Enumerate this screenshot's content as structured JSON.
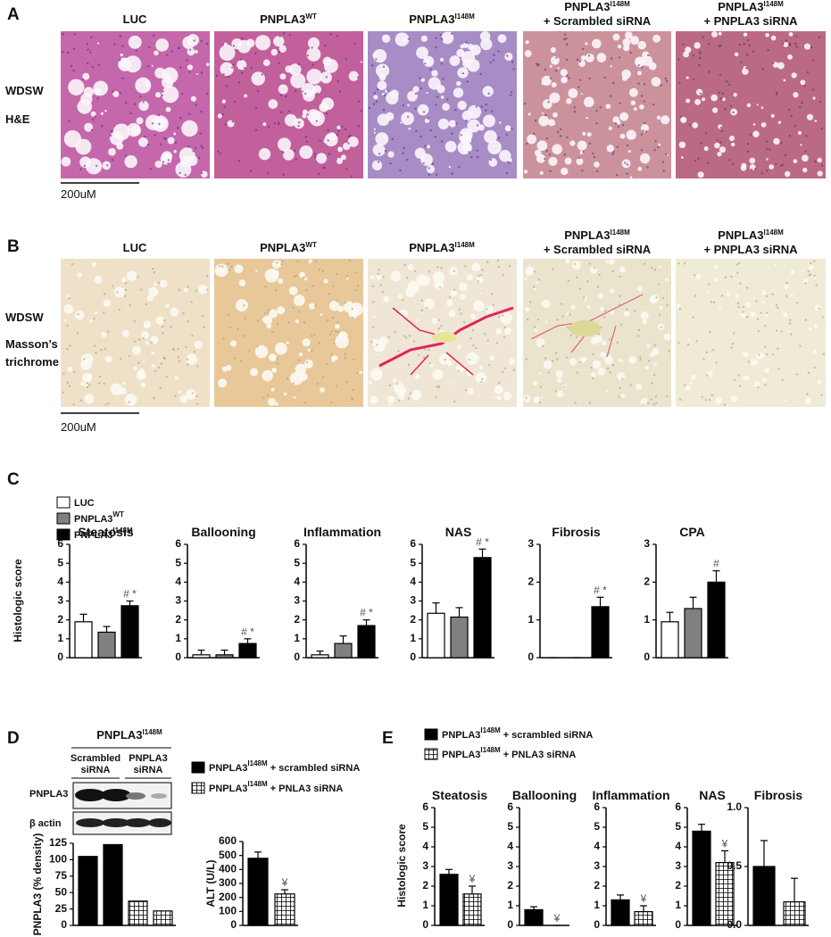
{
  "panel_a": {
    "label": "A",
    "columns": [
      {
        "text": "LUC"
      },
      {
        "text": "PNPLA3",
        "sup": "WT"
      },
      {
        "text": "PNPLA3",
        "sup": "I148M"
      },
      {
        "text": "PNPLA3",
        "sup": "I148M",
        "line2": "+ Scrambled siRNA"
      },
      {
        "text": "PNPLA3",
        "sup": "I148M",
        "line2": "+ PNPLA3 siRNA"
      }
    ],
    "row_labels": [
      "WDSW",
      "H&E"
    ],
    "scale_bar": "200uM"
  },
  "panel_b": {
    "label": "B",
    "columns": [
      {
        "text": "LUC"
      },
      {
        "text": "PNPLA3",
        "sup": "WT"
      },
      {
        "text": "PNPLA3",
        "sup": "I148M"
      },
      {
        "text": "PNPLA3",
        "sup": "I148M",
        "line2": "+ Scrambled siRNA"
      },
      {
        "text": "PNPLA3",
        "sup": "I148M",
        "line2": "+ PNPLA3 siRNA"
      }
    ],
    "row_labels": [
      "WDSW",
      "Masson’s",
      "trichrome"
    ],
    "scale_bar": "200uM"
  },
  "panel_c": {
    "label": "C",
    "ylabel": "Histologic score",
    "legend": [
      {
        "name": "LUC",
        "color": "#ffffff"
      },
      {
        "name": "PNPLA3",
        "sup": "WT",
        "color": "#808080"
      },
      {
        "name": "PNPLA3",
        "sup": "I148M",
        "color": "#000000"
      }
    ]
  },
  "panel_d": {
    "label": "D",
    "blot_title": {
      "text": "PNPLA3",
      "sup": "I148M"
    },
    "groups": [
      [
        "Scrambled",
        "siRNA"
      ],
      [
        "PNPLA3",
        "siRNA"
      ]
    ],
    "blot_rows": [
      "PNPLA3",
      "β actin"
    ],
    "legend": [
      {
        "name": "PNPLA3",
        "sup": "I148M",
        "after": " + scrambled siRNA",
        "color": "#000000"
      },
      {
        "name": "PNPLA3",
        "sup": "I148M",
        "after": " + PNLA3 siRNA",
        "color": "hatched"
      }
    ]
  },
  "panel_e": {
    "label": "E",
    "ylabel": "Histologic score",
    "legend": [
      {
        "name": "PNPLA3",
        "sup": "I148M",
        "after": " + scrambled siRNA",
        "color": "#000000"
      },
      {
        "name": "PNPLA3",
        "sup": "I148M",
        "after": " + PNLA3 siRNA",
        "color": "hatched"
      }
    ]
  },
  "chart_data": [
    {
      "type": "bar",
      "title": "Steatosis",
      "values": [
        1.9,
        1.35,
        2.75
      ],
      "errors": [
        0.4,
        0.3,
        0.25
      ],
      "colors": [
        "#ffffff",
        "#808080",
        "#000000"
      ],
      "ylim": [
        0,
        6
      ],
      "yticks": [
        0,
        1,
        2,
        3,
        4,
        5,
        6
      ],
      "annotation": "# *"
    },
    {
      "type": "bar",
      "title": "Ballooning",
      "values": [
        0.15,
        0.15,
        0.75
      ],
      "errors": [
        0.25,
        0.25,
        0.25
      ],
      "colors": [
        "#ffffff",
        "#808080",
        "#000000"
      ],
      "ylim": [
        0,
        6
      ],
      "yticks": [
        0,
        1,
        2,
        3,
        4,
        5,
        6
      ],
      "annotation": "# *"
    },
    {
      "type": "bar",
      "title": "Inflammation",
      "values": [
        0.15,
        0.75,
        1.7
      ],
      "errors": [
        0.2,
        0.4,
        0.3
      ],
      "colors": [
        "#ffffff",
        "#808080",
        "#000000"
      ],
      "ylim": [
        0,
        6
      ],
      "yticks": [
        0,
        1,
        2,
        3,
        4,
        5,
        6
      ],
      "annotation": "# *"
    },
    {
      "type": "bar",
      "title": "NAS",
      "values": [
        2.35,
        2.15,
        5.3
      ],
      "errors": [
        0.55,
        0.5,
        0.45
      ],
      "colors": [
        "#ffffff",
        "#808080",
        "#000000"
      ],
      "ylim": [
        0,
        6
      ],
      "yticks": [
        0,
        1,
        2,
        3,
        4,
        5,
        6
      ],
      "annotation": "# *"
    },
    {
      "type": "bar",
      "title": "Fibrosis",
      "values": [
        0,
        0,
        1.35
      ],
      "errors": [
        0,
        0,
        0.25
      ],
      "colors": [
        "#ffffff",
        "#808080",
        "#000000"
      ],
      "ylim": [
        0,
        3
      ],
      "yticks": [
        0,
        1,
        2,
        3
      ],
      "annotation": "# *"
    },
    {
      "type": "bar",
      "title": "CPA",
      "values": [
        0.95,
        1.3,
        2.0
      ],
      "errors": [
        0.25,
        0.3,
        0.3
      ],
      "colors": [
        "#ffffff",
        "#808080",
        "#000000"
      ],
      "ylim": [
        0,
        3
      ],
      "yticks": [
        0,
        1,
        2,
        3
      ],
      "annotation": "#"
    },
    {
      "type": "bar",
      "ylabel": "PNPLA3 (% density)",
      "values": [
        105,
        123,
        37,
        22
      ],
      "colors": [
        "#000000",
        "#000000",
        "hatched",
        "hatched"
      ],
      "ylim": [
        0,
        125
      ],
      "yticks": [
        0,
        25,
        50,
        75,
        100,
        125
      ]
    },
    {
      "type": "bar",
      "ylabel": "ALT (U/L)",
      "values": [
        480,
        225
      ],
      "errors": [
        45,
        30
      ],
      "colors": [
        "#000000",
        "hatched"
      ],
      "ylim": [
        0,
        600
      ],
      "yticks": [
        0,
        100,
        200,
        300,
        400,
        500,
        600
      ],
      "annotation": "¥"
    },
    {
      "type": "bar",
      "title": "Steatosis",
      "values": [
        2.6,
        1.6
      ],
      "errors": [
        0.25,
        0.4
      ],
      "colors": [
        "#000000",
        "hatched"
      ],
      "ylim": [
        0,
        6
      ],
      "yticks": [
        0,
        1,
        2,
        3,
        4,
        5,
        6
      ],
      "annotation": "¥"
    },
    {
      "type": "bar",
      "title": "Ballooning",
      "values": [
        0.8,
        0
      ],
      "errors": [
        0.15,
        0
      ],
      "colors": [
        "#000000",
        "hatched"
      ],
      "ylim": [
        0,
        6
      ],
      "yticks": [
        0,
        1,
        2,
        3,
        4,
        5,
        6
      ],
      "annotation": "¥"
    },
    {
      "type": "bar",
      "title": "Inflammation",
      "values": [
        1.3,
        0.7
      ],
      "errors": [
        0.25,
        0.3
      ],
      "colors": [
        "#000000",
        "hatched"
      ],
      "ylim": [
        0,
        6
      ],
      "yticks": [
        0,
        1,
        2,
        3,
        4,
        5,
        6
      ],
      "annotation": "¥"
    },
    {
      "type": "bar",
      "title": "NAS",
      "values": [
        4.8,
        3.2
      ],
      "errors": [
        0.35,
        0.6
      ],
      "colors": [
        "#000000",
        "hatched"
      ],
      "ylim": [
        0,
        6
      ],
      "yticks": [
        0,
        1,
        2,
        3,
        4,
        5,
        6
      ],
      "annotation": "¥"
    },
    {
      "type": "bar",
      "title": "Fibrosis",
      "values": [
        0.5,
        0.2
      ],
      "errors": [
        0.22,
        0.2
      ],
      "colors": [
        "#000000",
        "hatched"
      ],
      "ylim": [
        0,
        1
      ],
      "yticks": [
        {
          "value": 0,
          "label": "0.0"
        },
        0.5,
        {
          "value": 1,
          "label": "1.0"
        }
      ]
    }
  ]
}
